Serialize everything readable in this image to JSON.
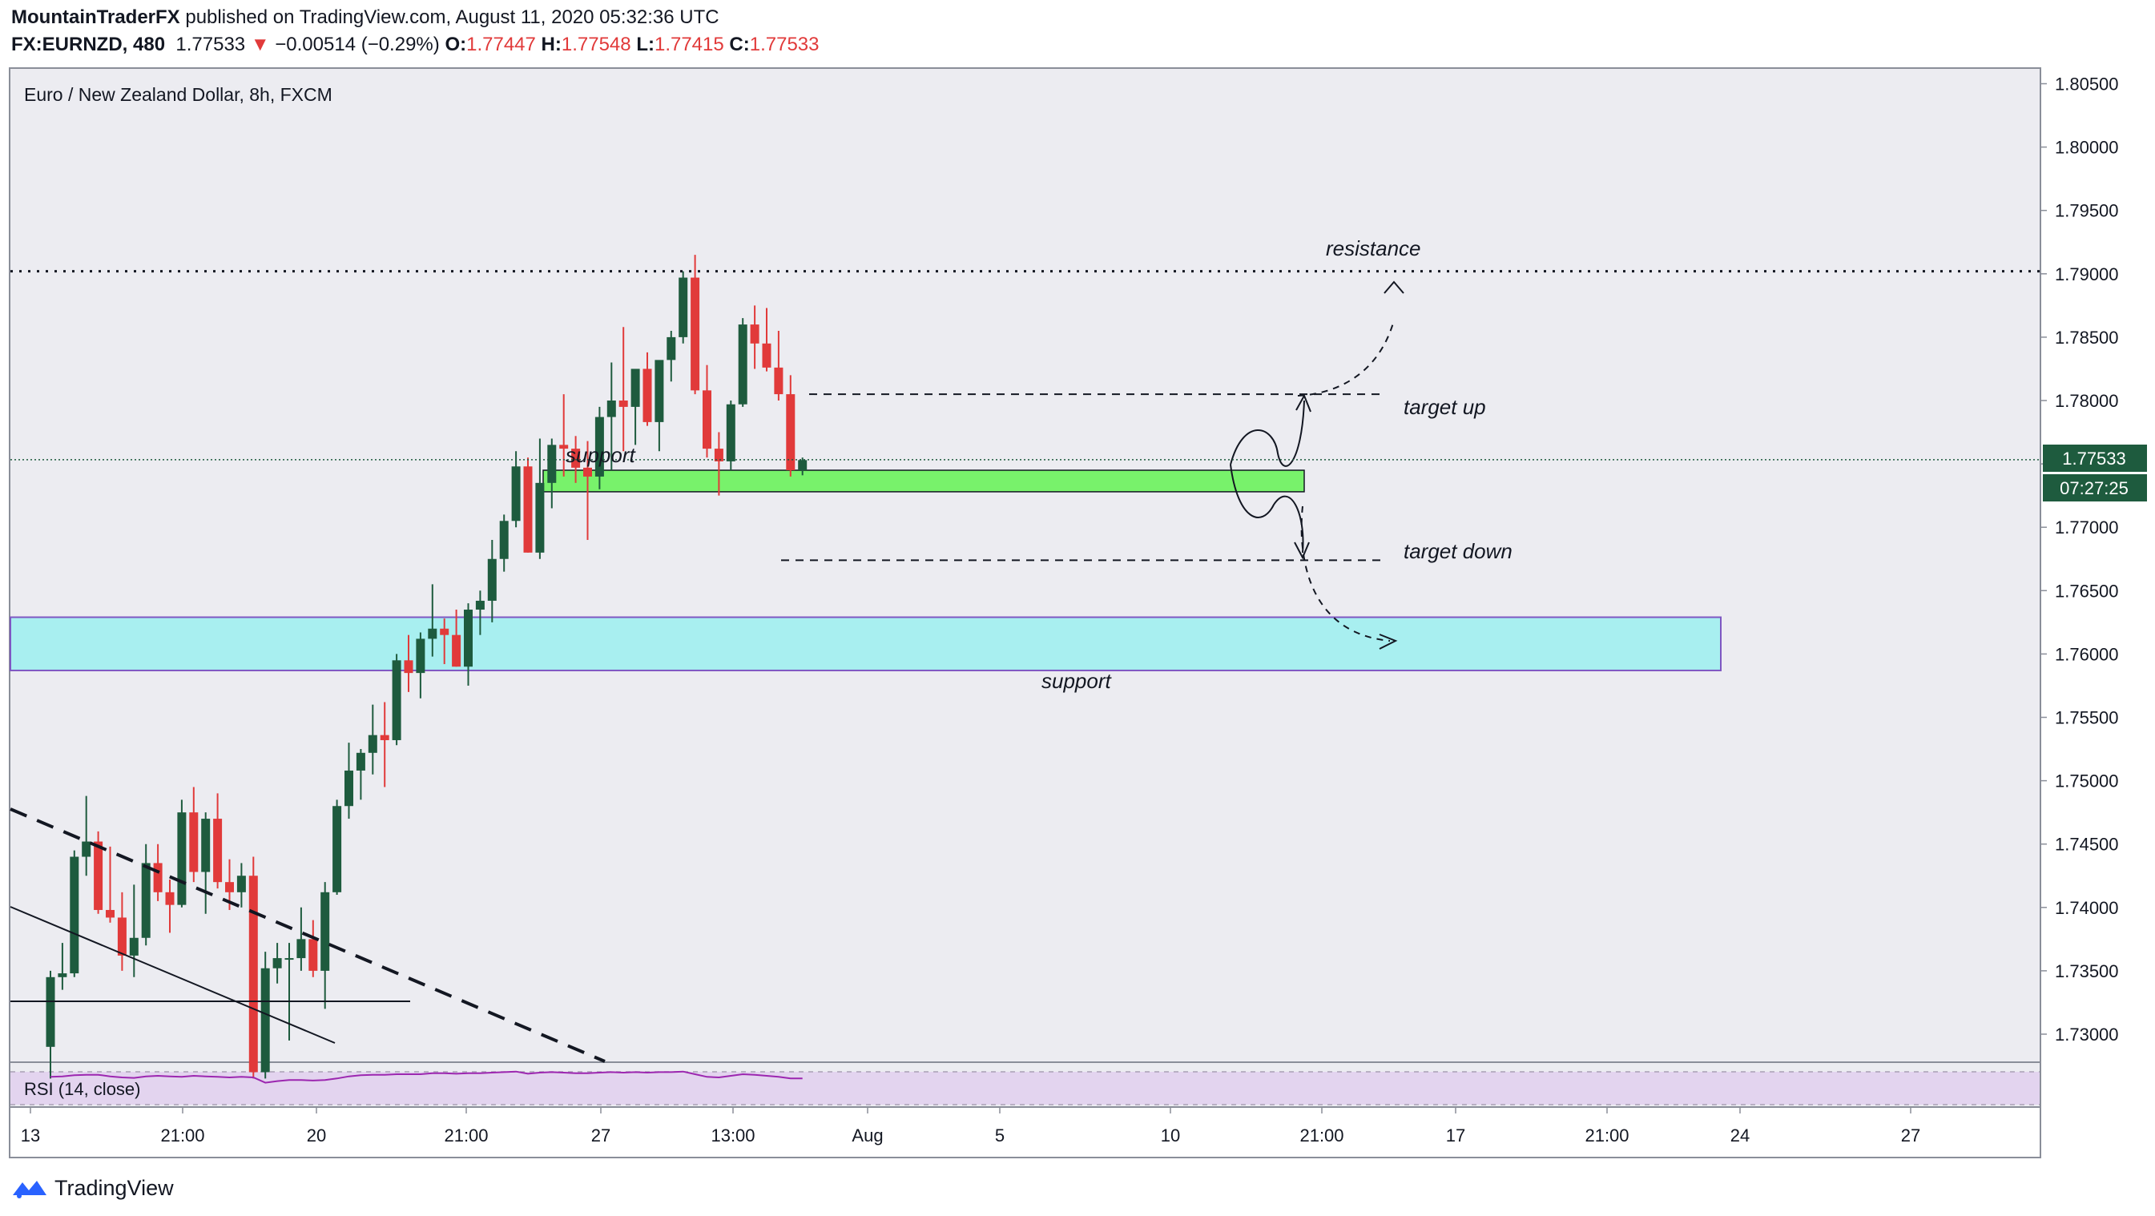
{
  "header": {
    "author": "MountainTraderFX",
    "published_text": "published on TradingView.com, August 11, 2020 05:32:36 UTC",
    "symbol": "FX:EURNZD, 480",
    "last": "1.77533",
    "down_arrow": "▼",
    "change": "−0.00514 (−0.29%)",
    "open_label": "O:",
    "open": "1.77447",
    "high_label": "H:",
    "high": "1.77548",
    "low_label": "L:",
    "low": "1.77415",
    "close_label": "C:",
    "close": "1.77533"
  },
  "chart_title": "Euro / New Zealand Dollar, 8h, FXCM",
  "indicator_label": "RSI (14, close)",
  "price_badge": "1.77533",
  "countdown_badge": "07:27:25",
  "brand": "TradingView",
  "colors": {
    "up": "#1e5b3e",
    "down": "#e13a3a",
    "background": "#ececf1",
    "support_zone_upper": "#78f26b",
    "support_zone_lower": "#a8eff0",
    "rsi_line": "#9c27b0",
    "rsi_band": "#e3d4ef",
    "badge_bg": "#1e5b3e"
  },
  "icons": [
    "tradingview-logo-icon"
  ],
  "chart_data": {
    "type": "candlestick",
    "title": "Euro / New Zealand Dollar, 8h, FXCM",
    "x_tick_labels": [
      "13",
      "21:00",
      "20",
      "21:00",
      "27",
      "13:00",
      "Aug",
      "5",
      "10",
      "21:00",
      "17",
      "21:00",
      "24",
      "27"
    ],
    "y_tick_labels": [
      "1.80500",
      "1.80000",
      "1.79500",
      "1.79000",
      "1.78500",
      "1.78000",
      "1.77500",
      "1.77000",
      "1.76500",
      "1.76000",
      "1.75500",
      "1.75000",
      "1.74500",
      "1.74000",
      "1.73500",
      "1.73000"
    ],
    "ylim": [
      1.7265,
      1.8065
    ],
    "candles": [
      {
        "o": 1.729,
        "h": 1.735,
        "l": 1.7265,
        "c": 1.7345
      },
      {
        "o": 1.7345,
        "h": 1.7372,
        "l": 1.7335,
        "c": 1.7348
      },
      {
        "o": 1.7348,
        "h": 1.7445,
        "l": 1.7345,
        "c": 1.744
      },
      {
        "o": 1.744,
        "h": 1.7488,
        "l": 1.7425,
        "c": 1.7452
      },
      {
        "o": 1.7452,
        "h": 1.746,
        "l": 1.7395,
        "c": 1.7398
      },
      {
        "o": 1.7398,
        "h": 1.7448,
        "l": 1.7388,
        "c": 1.7392
      },
      {
        "o": 1.7392,
        "h": 1.7412,
        "l": 1.735,
        "c": 1.7362
      },
      {
        "o": 1.7362,
        "h": 1.7418,
        "l": 1.7345,
        "c": 1.7376
      },
      {
        "o": 1.7376,
        "h": 1.745,
        "l": 1.737,
        "c": 1.7435
      },
      {
        "o": 1.7435,
        "h": 1.745,
        "l": 1.7405,
        "c": 1.7412
      },
      {
        "o": 1.7412,
        "h": 1.7422,
        "l": 1.738,
        "c": 1.7402
      },
      {
        "o": 1.7402,
        "h": 1.7485,
        "l": 1.74,
        "c": 1.7475
      },
      {
        "o": 1.7475,
        "h": 1.7495,
        "l": 1.742,
        "c": 1.7428
      },
      {
        "o": 1.7428,
        "h": 1.7475,
        "l": 1.7395,
        "c": 1.747
      },
      {
        "o": 1.747,
        "h": 1.749,
        "l": 1.7415,
        "c": 1.742
      },
      {
        "o": 1.742,
        "h": 1.7438,
        "l": 1.7398,
        "c": 1.7412
      },
      {
        "o": 1.7412,
        "h": 1.7435,
        "l": 1.74,
        "c": 1.7425
      },
      {
        "o": 1.7425,
        "h": 1.744,
        "l": 1.7265,
        "c": 1.727
      },
      {
        "o": 1.727,
        "h": 1.7365,
        "l": 1.7265,
        "c": 1.7352
      },
      {
        "o": 1.7352,
        "h": 1.7372,
        "l": 1.734,
        "c": 1.736
      },
      {
        "o": 1.736,
        "h": 1.7372,
        "l": 1.7295,
        "c": 1.736
      },
      {
        "o": 1.736,
        "h": 1.74,
        "l": 1.735,
        "c": 1.7375
      },
      {
        "o": 1.7375,
        "h": 1.739,
        "l": 1.7345,
        "c": 1.735
      },
      {
        "o": 1.735,
        "h": 1.742,
        "l": 1.732,
        "c": 1.7412
      },
      {
        "o": 1.7412,
        "h": 1.7485,
        "l": 1.741,
        "c": 1.748
      },
      {
        "o": 1.748,
        "h": 1.753,
        "l": 1.747,
        "c": 1.7508
      },
      {
        "o": 1.7508,
        "h": 1.7525,
        "l": 1.7485,
        "c": 1.7522
      },
      {
        "o": 1.7522,
        "h": 1.756,
        "l": 1.7505,
        "c": 1.7536
      },
      {
        "o": 1.7536,
        "h": 1.7562,
        "l": 1.7495,
        "c": 1.7532
      },
      {
        "o": 1.7532,
        "h": 1.76,
        "l": 1.7528,
        "c": 1.7595
      },
      {
        "o": 1.7595,
        "h": 1.7615,
        "l": 1.757,
        "c": 1.7585
      },
      {
        "o": 1.7585,
        "h": 1.7617,
        "l": 1.7565,
        "c": 1.7612
      },
      {
        "o": 1.7612,
        "h": 1.7655,
        "l": 1.7598,
        "c": 1.762
      },
      {
        "o": 1.762,
        "h": 1.7628,
        "l": 1.7592,
        "c": 1.7615
      },
      {
        "o": 1.7615,
        "h": 1.7635,
        "l": 1.759,
        "c": 1.759
      },
      {
        "o": 1.759,
        "h": 1.764,
        "l": 1.7575,
        "c": 1.7635
      },
      {
        "o": 1.7635,
        "h": 1.765,
        "l": 1.7615,
        "c": 1.7642
      },
      {
        "o": 1.7642,
        "h": 1.769,
        "l": 1.7625,
        "c": 1.7675
      },
      {
        "o": 1.7675,
        "h": 1.771,
        "l": 1.7665,
        "c": 1.7705
      },
      {
        "o": 1.7705,
        "h": 1.776,
        "l": 1.77,
        "c": 1.7748
      },
      {
        "o": 1.7748,
        "h": 1.7755,
        "l": 1.768,
        "c": 1.768
      },
      {
        "o": 1.768,
        "h": 1.777,
        "l": 1.7675,
        "c": 1.7735
      },
      {
        "o": 1.7735,
        "h": 1.777,
        "l": 1.7715,
        "c": 1.7765
      },
      {
        "o": 1.7765,
        "h": 1.7805,
        "l": 1.774,
        "c": 1.7762
      },
      {
        "o": 1.7762,
        "h": 1.7772,
        "l": 1.7735,
        "c": 1.7747
      },
      {
        "o": 1.7747,
        "h": 1.7768,
        "l": 1.769,
        "c": 1.774
      },
      {
        "o": 1.774,
        "h": 1.7795,
        "l": 1.773,
        "c": 1.7787
      },
      {
        "o": 1.7787,
        "h": 1.783,
        "l": 1.7745,
        "c": 1.78
      },
      {
        "o": 1.78,
        "h": 1.7858,
        "l": 1.776,
        "c": 1.7795
      },
      {
        "o": 1.7795,
        "h": 1.7825,
        "l": 1.7765,
        "c": 1.7825
      },
      {
        "o": 1.7825,
        "h": 1.7838,
        "l": 1.778,
        "c": 1.7783
      },
      {
        "o": 1.7783,
        "h": 1.783,
        "l": 1.776,
        "c": 1.7832
      },
      {
        "o": 1.7832,
        "h": 1.7855,
        "l": 1.7815,
        "c": 1.785
      },
      {
        "o": 1.785,
        "h": 1.7902,
        "l": 1.7845,
        "c": 1.7897
      },
      {
        "o": 1.7897,
        "h": 1.7915,
        "l": 1.7805,
        "c": 1.7808
      },
      {
        "o": 1.7808,
        "h": 1.7828,
        "l": 1.7755,
        "c": 1.7762
      },
      {
        "o": 1.7762,
        "h": 1.7775,
        "l": 1.7725,
        "c": 1.7752
      },
      {
        "o": 1.7752,
        "h": 1.78,
        "l": 1.7745,
        "c": 1.7797
      },
      {
        "o": 1.7797,
        "h": 1.7865,
        "l": 1.7795,
        "c": 1.786
      },
      {
        "o": 1.786,
        "h": 1.7875,
        "l": 1.7825,
        "c": 1.7845
      },
      {
        "o": 1.7845,
        "h": 1.7873,
        "l": 1.7823,
        "c": 1.7826
      },
      {
        "o": 1.7826,
        "h": 1.7855,
        "l": 1.78,
        "c": 1.7805
      },
      {
        "o": 1.7805,
        "h": 1.782,
        "l": 1.774,
        "c": 1.7745
      },
      {
        "o": 1.7745,
        "h": 1.7755,
        "l": 1.7741,
        "c": 1.7753
      }
    ],
    "levels": {
      "resistance": 1.7902,
      "target_up": 1.7805,
      "target_down": 1.7674,
      "current_price": 1.77533
    },
    "zones": [
      {
        "from": 1.7728,
        "to": 1.7745
      },
      {
        "from": 1.7587,
        "to": 1.7629
      }
    ],
    "annotations": {
      "resistance": "resistance",
      "target_up": "target up",
      "target_down": "target down",
      "support_upper": "support",
      "support_lower": "support"
    },
    "rsi": [
      48,
      49,
      51,
      52,
      52,
      49,
      47,
      46,
      49,
      50,
      49,
      48,
      50,
      49,
      48,
      47,
      48,
      47,
      37,
      40,
      42,
      42,
      41,
      42,
      45,
      49,
      51,
      52,
      52,
      53,
      53,
      53,
      55,
      55,
      54,
      55,
      55,
      56,
      57,
      58,
      54,
      56,
      57,
      56,
      55,
      55,
      56,
      57,
      56,
      57,
      56,
      57,
      57,
      58,
      53,
      48,
      47,
      50,
      53,
      52,
      50,
      48,
      45,
      45
    ]
  }
}
